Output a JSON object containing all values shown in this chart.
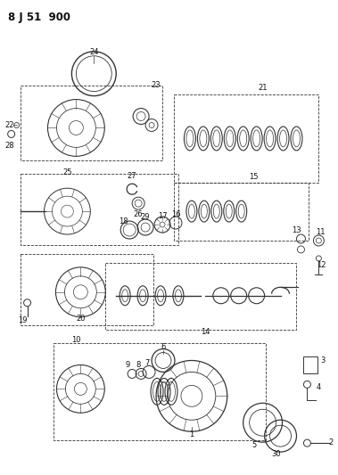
{
  "title": "8 J 51  900",
  "bg_color": "#ffffff",
  "line_color": "#333333",
  "text_color": "#111111",
  "fig_width": 3.79,
  "fig_height": 5.33,
  "dpi": 100,
  "lfs": 6.0
}
